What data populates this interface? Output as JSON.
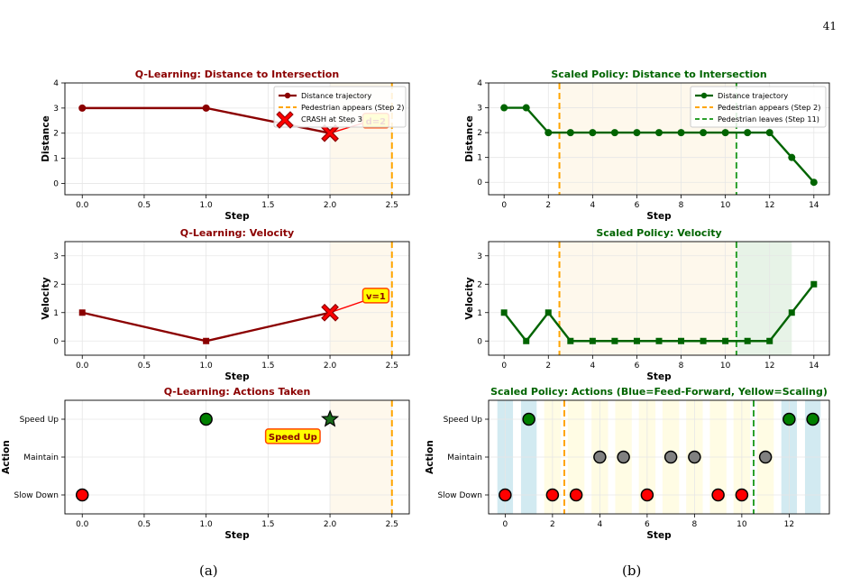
{
  "page_number": "41",
  "captions": {
    "a": "(a)",
    "b": "(b)"
  },
  "colors": {
    "q_title": "#8b0000",
    "q_line": "#8b0000",
    "crash": "#ff0000",
    "s_title": "#006400",
    "s_line": "#006400",
    "ped_appears": "#ffa500",
    "ped_leaves": "#2ca02c",
    "action_slow": "#ff0000",
    "action_maintain": "#808080",
    "action_speed": "#008000",
    "feed_forward_band": "#add8e6",
    "scaling_band": "#fffacd",
    "annot_fill": "#ffff00",
    "annot_edge": "#ff4500"
  },
  "chart_data": [
    {
      "id": "q-distance",
      "type": "line",
      "title": "Q-Learning: Distance to Intersection",
      "xlabel": "Step",
      "ylabel": "Distance",
      "xlim": [
        -0.14,
        2.64
      ],
      "ylim": [
        -0.45,
        4
      ],
      "xticks": [
        0,
        0.5,
        1,
        1.5,
        2,
        2.5
      ],
      "xtick_labels": [
        "0.0",
        "0.5",
        "1.0",
        "1.5",
        "2.0",
        "2.5"
      ],
      "yticks": [
        0,
        1,
        2,
        3,
        4
      ],
      "ytick_labels": [
        "0",
        "1",
        "2",
        "3",
        "4"
      ],
      "grid": true,
      "legend_position": "top-right",
      "series": [
        {
          "name": "Distance trajectory",
          "x": [
            0,
            1,
            2
          ],
          "y": [
            3,
            3,
            2
          ],
          "marker": "circle"
        }
      ],
      "crash_segment": {
        "x": [
          2,
          2.4
        ],
        "y": [
          2,
          2.6
        ]
      },
      "crash_marker": {
        "name": "CRASH at Step 3",
        "x": 2,
        "y": 2
      },
      "vlines": [
        {
          "name": "Pedestrian appears (Step 2)",
          "x": 2.5,
          "style": "dashed"
        }
      ],
      "shaded": [
        {
          "x0": 2,
          "x1": 2.5
        }
      ],
      "annotations": [
        {
          "text": "d=2",
          "x": 2.37,
          "y": 2.5
        }
      ]
    },
    {
      "id": "q-velocity",
      "type": "line",
      "title": "Q-Learning: Velocity",
      "xlabel": "Step",
      "ylabel": "Velocity",
      "xlim": [
        -0.14,
        2.64
      ],
      "ylim": [
        -0.5,
        3.5
      ],
      "xticks": [
        0,
        0.5,
        1,
        1.5,
        2,
        2.5
      ],
      "xtick_labels": [
        "0.0",
        "0.5",
        "1.0",
        "1.5",
        "2.0",
        "2.5"
      ],
      "yticks": [
        0,
        1,
        2,
        3
      ],
      "ytick_labels": [
        "0",
        "1",
        "2",
        "3"
      ],
      "grid": true,
      "series": [
        {
          "x": [
            0,
            1,
            2
          ],
          "y": [
            1,
            0,
            1
          ],
          "marker": "square"
        }
      ],
      "crash_segment": {
        "x": [
          2,
          2.4
        ],
        "y": [
          1,
          1.6
        ]
      },
      "crash_marker": {
        "x": 2,
        "y": 1
      },
      "vlines": [
        {
          "x": 2.5,
          "style": "dashed"
        }
      ],
      "shaded": [
        {
          "x0": 2,
          "x1": 2.5
        }
      ],
      "annotations": [
        {
          "text": "v=1",
          "x": 2.37,
          "y": 1.6
        }
      ]
    },
    {
      "id": "q-actions",
      "type": "scatter",
      "title": "Q-Learning: Actions Taken",
      "xlabel": "Step",
      "ylabel": "Action",
      "xlim": [
        -0.14,
        2.64
      ],
      "ylim": [
        -0.5,
        2.5
      ],
      "xticks": [
        0,
        0.5,
        1,
        1.5,
        2,
        2.5
      ],
      "xtick_labels": [
        "0.0",
        "0.5",
        "1.0",
        "1.5",
        "2.0",
        "2.5"
      ],
      "yticks": [
        0,
        1,
        2
      ],
      "ytick_labels": [
        "Slow Down",
        "Maintain",
        "Speed Up"
      ],
      "grid": true,
      "points": [
        {
          "x": 0,
          "y": 0,
          "action": "Slow Down"
        },
        {
          "x": 1,
          "y": 2,
          "action": "Speed Up"
        }
      ],
      "star_marker": {
        "x": 2,
        "y": 2
      },
      "vlines": [
        {
          "x": 2.5,
          "style": "dashed"
        }
      ],
      "shaded": [
        {
          "x0": 2,
          "x1": 2.5
        }
      ],
      "annotations": [
        {
          "text": "Speed Up",
          "x": 1.7,
          "y": 1.55
        }
      ]
    },
    {
      "id": "s-distance",
      "type": "line",
      "title": "Scaled Policy: Distance to Intersection",
      "xlabel": "Step",
      "ylabel": "Distance",
      "xlim": [
        -0.7,
        14.7
      ],
      "ylim": [
        -0.5,
        4
      ],
      "xticks": [
        0,
        2,
        4,
        6,
        8,
        10,
        12,
        14
      ],
      "xtick_labels": [
        "0",
        "2",
        "4",
        "6",
        "8",
        "10",
        "12",
        "14"
      ],
      "yticks": [
        0,
        1,
        2,
        3,
        4
      ],
      "ytick_labels": [
        "0",
        "1",
        "2",
        "3",
        "4"
      ],
      "grid": true,
      "legend_position": "top-right",
      "series": [
        {
          "name": "Distance trajectory",
          "x": [
            0,
            1,
            2,
            3,
            4,
            5,
            6,
            7,
            8,
            9,
            10,
            11,
            12,
            13,
            14
          ],
          "y": [
            3,
            3,
            2,
            2,
            2,
            2,
            2,
            2,
            2,
            2,
            2,
            2,
            2,
            1,
            0
          ],
          "marker": "circle"
        }
      ],
      "vlines": [
        {
          "name": "Pedestrian appears (Step 2)",
          "x": 2.5,
          "style": "dashed",
          "kind": "appears"
        },
        {
          "name": "Pedestrian leaves (Step 11)",
          "x": 10.5,
          "style": "dashed",
          "kind": "leaves"
        }
      ],
      "shaded": [
        {
          "x0": 2.5,
          "x1": 10.5,
          "kind": "orange"
        }
      ]
    },
    {
      "id": "s-velocity",
      "type": "line",
      "title": "Scaled Policy: Velocity",
      "xlabel": "Step",
      "ylabel": "Velocity",
      "xlim": [
        -0.7,
        14.7
      ],
      "ylim": [
        -0.5,
        3.5
      ],
      "xticks": [
        0,
        2,
        4,
        6,
        8,
        10,
        12,
        14
      ],
      "xtick_labels": [
        "0",
        "2",
        "4",
        "6",
        "8",
        "10",
        "12",
        "14"
      ],
      "yticks": [
        0,
        1,
        2,
        3
      ],
      "ytick_labels": [
        "0",
        "1",
        "2",
        "3"
      ],
      "grid": true,
      "series": [
        {
          "x": [
            0,
            1,
            2,
            3,
            4,
            5,
            6,
            7,
            8,
            9,
            10,
            11,
            12,
            13,
            14
          ],
          "y": [
            1,
            0,
            1,
            0,
            0,
            0,
            0,
            0,
            0,
            0,
            0,
            0,
            0,
            1,
            2
          ],
          "marker": "square"
        }
      ],
      "vlines": [
        {
          "x": 2.5,
          "style": "dashed",
          "kind": "appears"
        },
        {
          "x": 10.5,
          "style": "dashed",
          "kind": "leaves"
        }
      ],
      "shaded": [
        {
          "x0": 2.5,
          "x1": 10.5,
          "kind": "orange"
        },
        {
          "x0": 10.5,
          "x1": 13,
          "kind": "green"
        }
      ]
    },
    {
      "id": "s-actions",
      "type": "scatter",
      "title": "Scaled Policy: Actions (Blue=Feed-Forward, Yellow=Scaling)",
      "xlabel": "Step",
      "ylabel": "Action",
      "xlim": [
        -0.7,
        13.7
      ],
      "ylim": [
        -0.5,
        2.5
      ],
      "xticks": [
        0,
        2,
        4,
        6,
        8,
        10,
        12
      ],
      "xtick_labels": [
        "0",
        "2",
        "4",
        "6",
        "8",
        "10",
        "12"
      ],
      "yticks": [
        0,
        1,
        2
      ],
      "ytick_labels": [
        "Slow Down",
        "Maintain",
        "Speed Up"
      ],
      "grid": true,
      "points": [
        {
          "x": 0,
          "y": 0,
          "action": "Slow Down",
          "mode": "Feed-Forward"
        },
        {
          "x": 1,
          "y": 2,
          "action": "Speed Up",
          "mode": "Feed-Forward"
        },
        {
          "x": 2,
          "y": 0,
          "action": "Slow Down",
          "mode": "Scaling"
        },
        {
          "x": 3,
          "y": 0,
          "action": "Slow Down",
          "mode": "Scaling"
        },
        {
          "x": 4,
          "y": 1,
          "action": "Maintain",
          "mode": "Scaling"
        },
        {
          "x": 5,
          "y": 1,
          "action": "Maintain",
          "mode": "Scaling"
        },
        {
          "x": 6,
          "y": 0,
          "action": "Slow Down",
          "mode": "Scaling"
        },
        {
          "x": 7,
          "y": 1,
          "action": "Maintain",
          "mode": "Scaling"
        },
        {
          "x": 8,
          "y": 1,
          "action": "Maintain",
          "mode": "Scaling"
        },
        {
          "x": 9,
          "y": 0,
          "action": "Slow Down",
          "mode": "Scaling"
        },
        {
          "x": 10,
          "y": 0,
          "action": "Slow Down",
          "mode": "Scaling"
        },
        {
          "x": 11,
          "y": 1,
          "action": "Maintain",
          "mode": "Scaling"
        },
        {
          "x": 12,
          "y": 2,
          "action": "Speed Up",
          "mode": "Feed-Forward"
        },
        {
          "x": 13,
          "y": 2,
          "action": "Speed Up",
          "mode": "Feed-Forward"
        }
      ],
      "vlines": [
        {
          "x": 2.5,
          "style": "dashed",
          "kind": "appears"
        },
        {
          "x": 10.5,
          "style": "dashed",
          "kind": "leaves"
        }
      ]
    }
  ]
}
